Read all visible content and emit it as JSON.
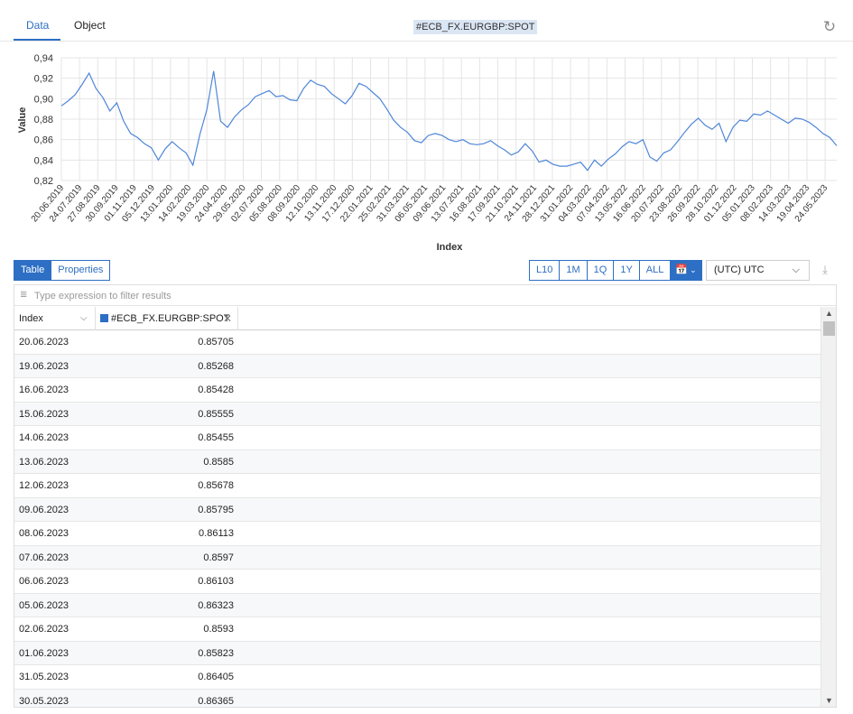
{
  "tabs": [
    {
      "label": "Data"
    },
    {
      "label": "Object"
    }
  ],
  "series_title": "#ECB_FX.EURGBP:SPOT",
  "colors": {
    "accent": "#2d6fc4",
    "line": "#4f86d8",
    "grid": "#e4e4e4"
  },
  "chart_data": {
    "type": "line",
    "title": "",
    "xlabel": "Index",
    "ylabel": "Value",
    "ylim": [
      0.82,
      0.94
    ],
    "yticks": [
      "0,82",
      "0,84",
      "0,86",
      "0,88",
      "0,90",
      "0,92",
      "0,94"
    ],
    "grid": true,
    "x_tick_labels": [
      "20.06.2019",
      "24.07.2019",
      "27.08.2019",
      "30.09.2019",
      "01.11.2019",
      "05.12.2019",
      "13.01.2020",
      "14.02.2020",
      "19.03.2020",
      "24.04.2020",
      "29.05.2020",
      "02.07.2020",
      "05.08.2020",
      "08.09.2020",
      "12.10.2020",
      "13.11.2020",
      "17.12.2020",
      "22.01.2021",
      "25.02.2021",
      "31.03.2021",
      "06.05.2021",
      "09.06.2021",
      "13.07.2021",
      "16.08.2021",
      "17.09.2021",
      "21.10.2021",
      "24.11.2021",
      "28.12.2021",
      "31.01.2022",
      "04.03.2022",
      "07.04.2022",
      "13.05.2022",
      "16.06.2022",
      "20.07.2022",
      "23.08.2022",
      "26.09.2022",
      "28.10.2022",
      "01.12.2022",
      "05.01.2023",
      "08.02.2023",
      "14.03.2023",
      "19.04.2023",
      "24.05.2023"
    ],
    "series": [
      {
        "values": [
          0.893,
          0.898,
          0.904,
          0.914,
          0.925,
          0.91,
          0.901,
          0.888,
          0.896,
          0.878,
          0.866,
          0.862,
          0.856,
          0.852,
          0.84,
          0.851,
          0.858,
          0.852,
          0.847,
          0.835,
          0.865,
          0.889,
          0.927,
          0.878,
          0.872,
          0.882,
          0.889,
          0.894,
          0.902,
          0.905,
          0.908,
          0.902,
          0.903,
          0.899,
          0.898,
          0.91,
          0.918,
          0.914,
          0.912,
          0.905,
          0.9,
          0.895,
          0.903,
          0.915,
          0.912,
          0.906,
          0.9,
          0.89,
          0.879,
          0.872,
          0.867,
          0.859,
          0.857,
          0.864,
          0.866,
          0.864,
          0.86,
          0.858,
          0.86,
          0.856,
          0.855,
          0.856,
          0.859,
          0.854,
          0.85,
          0.845,
          0.848,
          0.856,
          0.849,
          0.838,
          0.84,
          0.836,
          0.834,
          0.834,
          0.836,
          0.838,
          0.83,
          0.84,
          0.834,
          0.841,
          0.846,
          0.853,
          0.858,
          0.856,
          0.86,
          0.843,
          0.839,
          0.847,
          0.85,
          0.858,
          0.867,
          0.875,
          0.881,
          0.874,
          0.87,
          0.876,
          0.858,
          0.872,
          0.879,
          0.878,
          0.885,
          0.884,
          0.888,
          0.884,
          0.88,
          0.876,
          0.881,
          0.88,
          0.877,
          0.872,
          0.866,
          0.862,
          0.854
        ]
      }
    ]
  },
  "toolbar": {
    "view_tabs": [
      {
        "label": "Table"
      },
      {
        "label": "Properties"
      }
    ],
    "ranges": [
      {
        "label": "L10"
      },
      {
        "label": "1M"
      },
      {
        "label": "1Q"
      },
      {
        "label": "1Y"
      },
      {
        "label": "ALL"
      }
    ],
    "timezone": "(UTC) UTC"
  },
  "grid": {
    "filter_placeholder": "Type expression to filter results",
    "columns": [
      {
        "label": "Index"
      },
      {
        "label": "#ECB_FX.EURGBP:SPOT"
      }
    ],
    "rows": [
      {
        "index": "20.06.2023",
        "value": "0.85705"
      },
      {
        "index": "19.06.2023",
        "value": "0.85268"
      },
      {
        "index": "16.06.2023",
        "value": "0.85428"
      },
      {
        "index": "15.06.2023",
        "value": "0.85555"
      },
      {
        "index": "14.06.2023",
        "value": "0.85455"
      },
      {
        "index": "13.06.2023",
        "value": "0.8585"
      },
      {
        "index": "12.06.2023",
        "value": "0.85678"
      },
      {
        "index": "09.06.2023",
        "value": "0.85795"
      },
      {
        "index": "08.06.2023",
        "value": "0.86113"
      },
      {
        "index": "07.06.2023",
        "value": "0.8597"
      },
      {
        "index": "06.06.2023",
        "value": "0.86103"
      },
      {
        "index": "05.06.2023",
        "value": "0.86323"
      },
      {
        "index": "02.06.2023",
        "value": "0.8593"
      },
      {
        "index": "01.06.2023",
        "value": "0.85823"
      },
      {
        "index": "31.05.2023",
        "value": "0.86405"
      },
      {
        "index": "30.05.2023",
        "value": "0.86365"
      }
    ]
  }
}
